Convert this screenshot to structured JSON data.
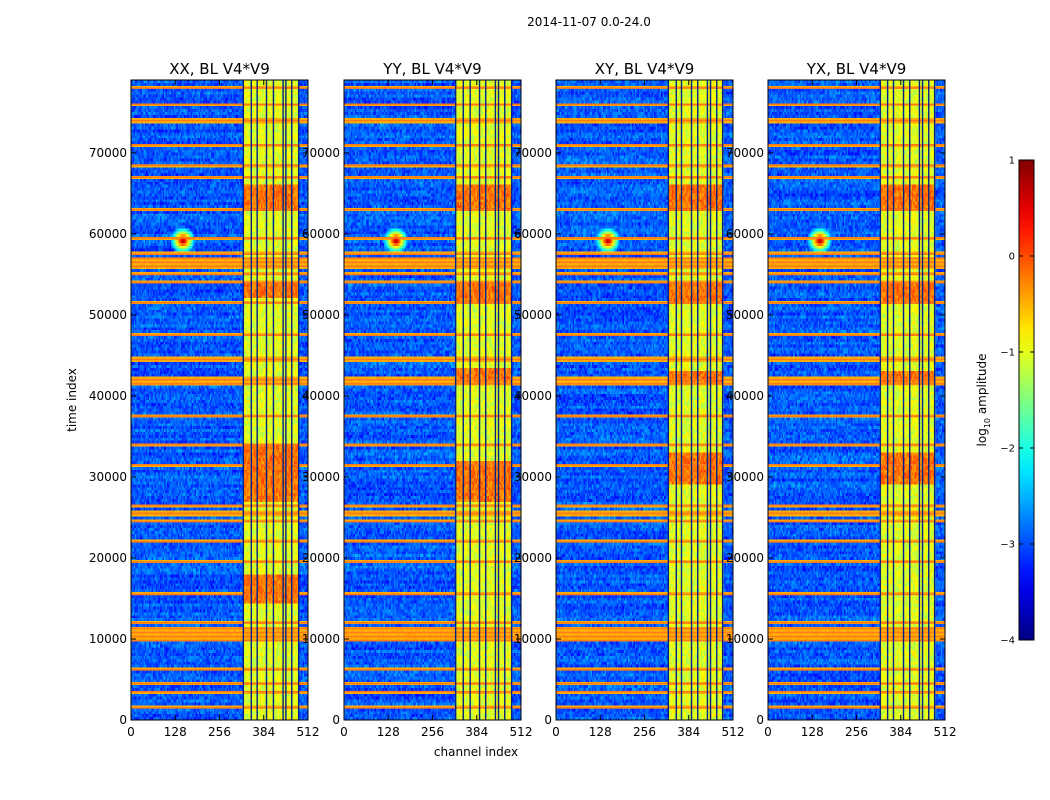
{
  "chart_data": {
    "type": "heatmap",
    "suptitle": "2014-11-07 0.0-24.0",
    "xlabel": "channel index",
    "ylabel": "time index",
    "xlim": [
      0,
      512
    ],
    "ylim": [
      0,
      79000
    ],
    "x_ticks": [
      0,
      128,
      256,
      384,
      512
    ],
    "y_ticks": [
      0,
      10000,
      20000,
      30000,
      40000,
      50000,
      60000,
      70000
    ],
    "colorbar": {
      "label": "log10 amplitude",
      "label_base": "log",
      "label_sub": "10",
      "label_rest": " amplitude",
      "range": [
        -4,
        1
      ],
      "ticks": [
        1,
        0,
        -1,
        -2,
        -3,
        -4
      ],
      "tick_labels": [
        "1",
        "0",
        "−1",
        "−2",
        "−3",
        "−4"
      ],
      "colormap": "jet"
    },
    "panels": [
      {
        "title": "XX, BL V4*V9",
        "rfi_band": [
          325,
          485
        ],
        "hot_time_ranges": [
          [
            63000,
            66000
          ],
          [
            52000,
            54000
          ],
          [
            14500,
            18000
          ],
          [
            27000,
            34000
          ]
        ],
        "vertical_lines": [
          325,
          348,
          365,
          392,
          412,
          440,
          448,
          465,
          485
        ]
      },
      {
        "title": "YY, BL V4*V9",
        "rfi_band": [
          323,
          485
        ],
        "hot_time_ranges": [
          [
            63000,
            66000
          ],
          [
            51500,
            54000
          ],
          [
            41500,
            43500
          ],
          [
            27000,
            32000
          ]
        ],
        "vertical_lines": [
          323,
          345,
          365,
          392,
          410,
          438,
          447,
          465,
          485
        ]
      },
      {
        "title": "XY, BL V4*V9",
        "rfi_band": [
          325,
          482
        ],
        "hot_time_ranges": [
          [
            63000,
            66000
          ],
          [
            51500,
            54000
          ],
          [
            41500,
            43000
          ],
          [
            29000,
            33000
          ]
        ],
        "vertical_lines": [
          325,
          348,
          363,
          392,
          410,
          438,
          447,
          465,
          482
        ]
      },
      {
        "title": "YX, BL V4*V9",
        "rfi_band": [
          325,
          482
        ],
        "hot_time_ranges": [
          [
            63000,
            66000
          ],
          [
            51500,
            54000
          ],
          [
            41500,
            43000
          ],
          [
            29000,
            33000
          ]
        ],
        "vertical_lines": [
          325,
          346,
          363,
          392,
          410,
          438,
          447,
          465,
          482
        ]
      }
    ],
    "spike": {
      "channel": 150,
      "time": 59200,
      "value": 1
    },
    "horizontal_rfi_times": [
      1500,
      3500,
      4500,
      6200,
      9800,
      10300,
      10800,
      11300,
      12000,
      15500,
      19500,
      22000,
      24500,
      25500,
      26500,
      31500,
      34000,
      37500,
      41500,
      42000,
      44500,
      47500,
      51500,
      54000,
      55000,
      56000,
      56500,
      57000,
      57500,
      59500,
      63000,
      67000,
      68500,
      71000,
      74000,
      76000,
      78000
    ]
  }
}
